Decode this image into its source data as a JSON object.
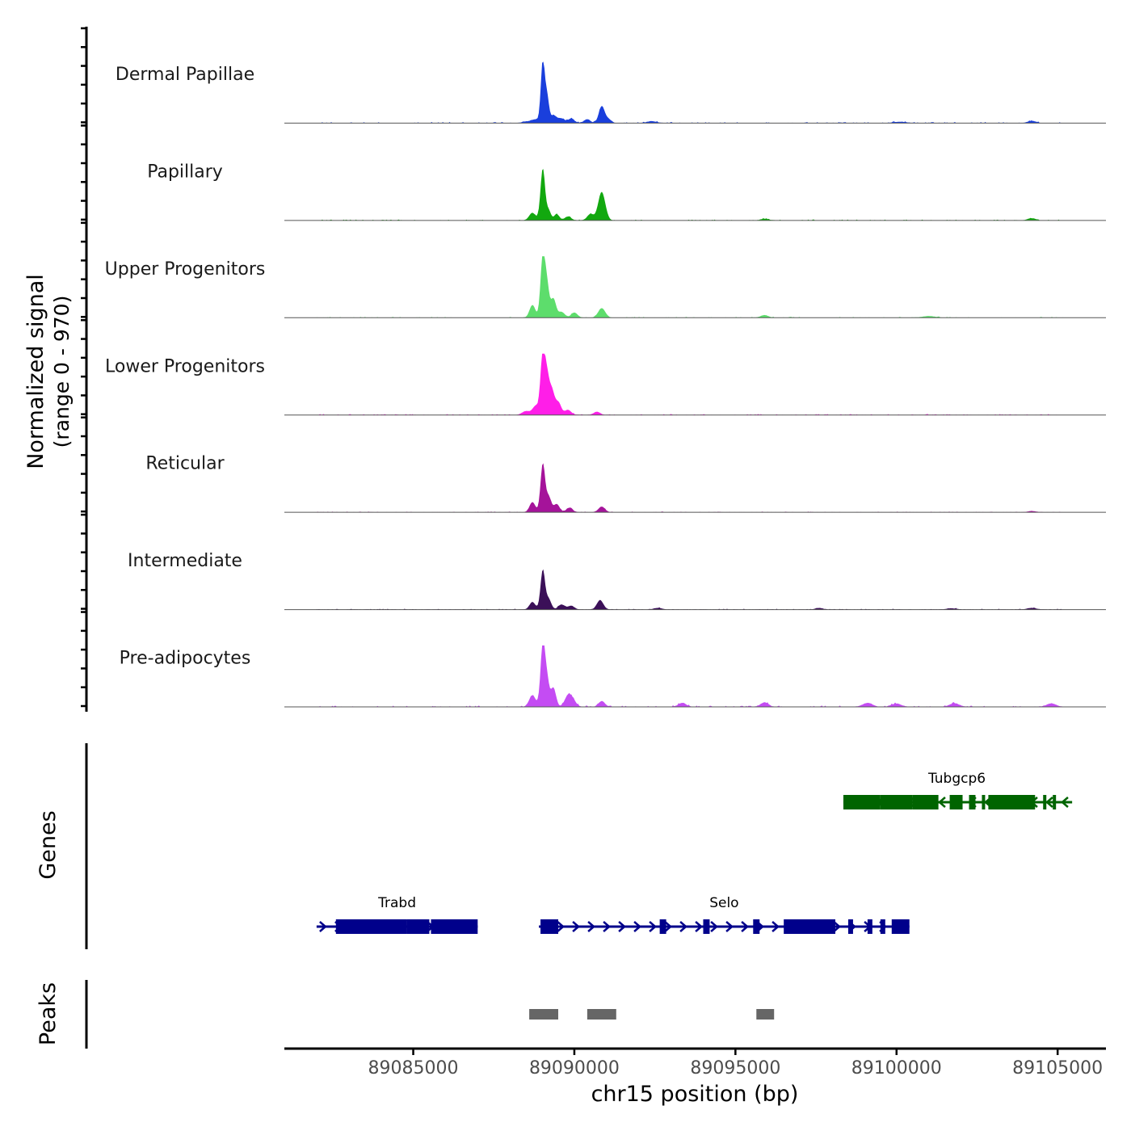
{
  "chart_data": {
    "type": "area",
    "title": "",
    "y_label_line1": "Normalized signal",
    "y_label_line2": "(range 0 - 970)",
    "y_range": [
      0,
      970
    ],
    "x_label": "chr15 position (bp)",
    "x_range": [
      89081000,
      89106500
    ],
    "x_ticks": [
      89085000,
      89090000,
      89095000,
      89100000,
      89105000
    ],
    "x_tick_labels": [
      "89085000",
      "89090000",
      "89095000",
      "89100000",
      "89105000"
    ],
    "tracks": [
      {
        "name": "Dermal Papillae",
        "color": "#1a3fdc",
        "peaks": [
          [
            88500,
            25,
            120
          ],
          [
            88800,
            60,
            120
          ],
          [
            89020,
            970,
            60
          ],
          [
            89150,
            420,
            60
          ],
          [
            89350,
            120,
            100
          ],
          [
            89600,
            70,
            100
          ],
          [
            89900,
            70,
            100
          ],
          [
            90400,
            60,
            100
          ],
          [
            90850,
            260,
            90
          ],
          [
            91050,
            60,
            100
          ],
          [
            92400,
            30,
            150
          ],
          [
            100100,
            20,
            200
          ],
          [
            104200,
            35,
            120
          ]
        ],
        "noise": 18
      },
      {
        "name": "Papillary",
        "color": "#12a80f",
        "peaks": [
          [
            88700,
            120,
            100
          ],
          [
            89020,
            820,
            70
          ],
          [
            89200,
            160,
            70
          ],
          [
            89450,
            100,
            80
          ],
          [
            89800,
            60,
            100
          ],
          [
            90500,
            100,
            100
          ],
          [
            90850,
            450,
            110
          ],
          [
            95900,
            25,
            120
          ],
          [
            104200,
            35,
            120
          ]
        ],
        "noise": 14
      },
      {
        "name": "Upper Progenitors",
        "color": "#5ddd6c",
        "peaks": [
          [
            88700,
            200,
            90
          ],
          [
            89020,
            970,
            70
          ],
          [
            89150,
            500,
            70
          ],
          [
            89350,
            300,
            80
          ],
          [
            89600,
            90,
            100
          ],
          [
            90000,
            80,
            100
          ],
          [
            90850,
            150,
            110
          ],
          [
            95900,
            40,
            120
          ],
          [
            101000,
            25,
            200
          ]
        ],
        "noise": 14
      },
      {
        "name": "Lower Progenitors",
        "color": "#ff1ee8",
        "peaks": [
          [
            88500,
            60,
            120
          ],
          [
            88800,
            140,
            100
          ],
          [
            89020,
            970,
            70
          ],
          [
            89150,
            550,
            70
          ],
          [
            89300,
            380,
            80
          ],
          [
            89500,
            200,
            90
          ],
          [
            89800,
            80,
            100
          ],
          [
            90700,
            50,
            100
          ]
        ],
        "noise": 16
      },
      {
        "name": "Reticular",
        "color": "#a5139a",
        "peaks": [
          [
            88700,
            160,
            90
          ],
          [
            89020,
            760,
            70
          ],
          [
            89200,
            250,
            80
          ],
          [
            89450,
            130,
            90
          ],
          [
            89850,
            70,
            100
          ],
          [
            90850,
            90,
            100
          ],
          [
            104200,
            20,
            120
          ]
        ],
        "noise": 12
      },
      {
        "name": "Intermediate",
        "color": "#3b1058",
        "peaks": [
          [
            88700,
            120,
            90
          ],
          [
            89020,
            620,
            70
          ],
          [
            89200,
            170,
            80
          ],
          [
            89600,
            80,
            100
          ],
          [
            89900,
            60,
            100
          ],
          [
            90800,
            150,
            100
          ],
          [
            92600,
            25,
            120
          ],
          [
            97600,
            25,
            120
          ],
          [
            101700,
            20,
            150
          ],
          [
            104200,
            25,
            140
          ]
        ],
        "noise": 14
      },
      {
        "name": "Pre-adipocytes",
        "color": "#c44cf3",
        "peaks": [
          [
            88700,
            180,
            100
          ],
          [
            89020,
            970,
            70
          ],
          [
            89150,
            420,
            70
          ],
          [
            89350,
            300,
            80
          ],
          [
            89800,
            170,
            100
          ],
          [
            89960,
            100,
            100
          ],
          [
            90850,
            90,
            100
          ],
          [
            93350,
            60,
            120
          ],
          [
            95900,
            70,
            120
          ],
          [
            99100,
            60,
            150
          ],
          [
            100000,
            50,
            150
          ],
          [
            101800,
            55,
            150
          ],
          [
            104800,
            50,
            150
          ]
        ],
        "noise": 22
      }
    ],
    "genes_label": "Genes",
    "genes": [
      {
        "name": "Tubgcp6",
        "strand": "-",
        "color": "#006400",
        "row": 0,
        "start": 98350,
        "end": 105450,
        "exons": [
          [
            98350,
            99500
          ],
          [
            99500,
            100500
          ],
          [
            100500,
            101300
          ],
          [
            101650,
            102050
          ],
          [
            102250,
            102450
          ],
          [
            102650,
            102750
          ],
          [
            102850,
            104300
          ],
          [
            104550,
            104650
          ],
          [
            104850,
            104950
          ]
        ]
      },
      {
        "name": "Trabd",
        "strand": "+",
        "color": "#00008b",
        "row": 1,
        "start": 82000,
        "end": 87000,
        "exons": [
          [
            82600,
            84800
          ],
          [
            84800,
            85500
          ],
          [
            85550,
            87000
          ]
        ]
      },
      {
        "name": "Selo",
        "strand": "+",
        "color": "#00008b",
        "row": 1,
        "start": 88900,
        "end": 100400,
        "exons": [
          [
            88950,
            89500
          ],
          [
            92650,
            92850
          ],
          [
            94000,
            94200
          ],
          [
            95550,
            95750
          ],
          [
            96500,
            98100
          ],
          [
            98500,
            98650
          ],
          [
            99100,
            99250
          ],
          [
            99500,
            99650
          ],
          [
            99850,
            100400
          ]
        ]
      }
    ],
    "peaks_label": "Peaks",
    "called_peaks": [
      [
        88600,
        89500
      ],
      [
        90400,
        91300
      ],
      [
        95650,
        96200
      ]
    ]
  }
}
